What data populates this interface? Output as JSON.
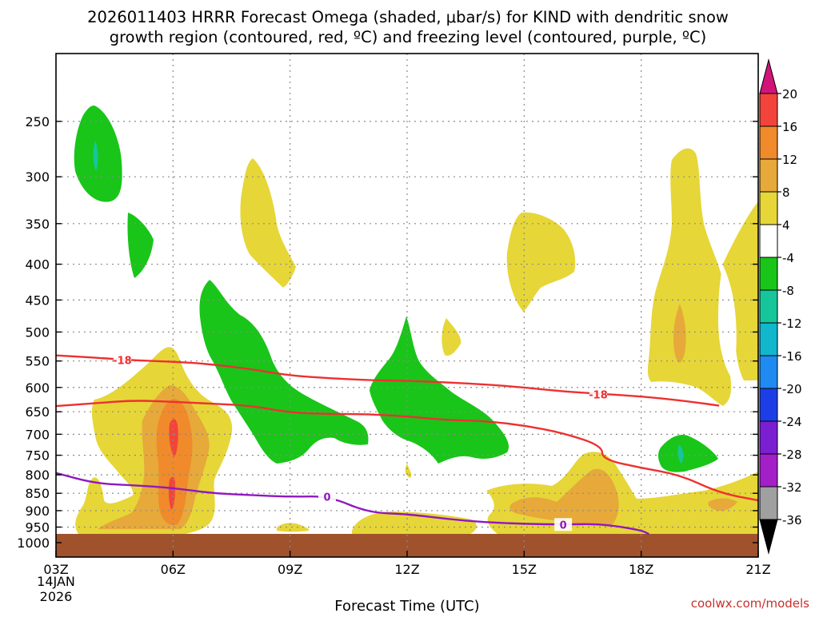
{
  "header": {
    "title_line1": "2026011403 HRRR Forecast Omega (shaded, μbar/s) for KIND with dendritic snow",
    "title_line2": "growth region (contoured, red, ºC) and freezing level (contoured, purple, ºC)"
  },
  "footer": {
    "xlabel": "Forecast Time (UTC)",
    "credit": "coolwx.com/models"
  },
  "chart_data": {
    "type": "heatmap",
    "title": "2026011403 HRRR Forecast Omega (shaded, μbar/s) for KIND with dendritic snow growth region (contoured, red, ºC) and freezing level (contoured, purple, ºC)",
    "xlabel": "Forecast Time (UTC)",
    "ylabel": "",
    "x_ticks": [
      "03Z",
      "06Z",
      "09Z",
      "12Z",
      "15Z",
      "18Z",
      "21Z"
    ],
    "x_tick_hours": [
      3,
      6,
      9,
      12,
      15,
      18,
      21
    ],
    "x_start_date": [
      "14JAN",
      "2026"
    ],
    "x_range": [
      3,
      21
    ],
    "y_ticks": [
      250,
      300,
      350,
      400,
      450,
      500,
      550,
      600,
      650,
      700,
      750,
      800,
      850,
      900,
      950,
      1000
    ],
    "y_range": [
      200,
      1000
    ],
    "y_scale": "log-pressure, inverted",
    "grid": true,
    "colorbar": {
      "ticks": [
        "20",
        "16",
        "12",
        "8",
        "4",
        "-4",
        "-8",
        "-12",
        "-16",
        "-20",
        "-24",
        "-28",
        "-32",
        "-36"
      ],
      "colors": {
        "above_20": "#d21479",
        "16_to_20": "#f2443a",
        "12_to_16": "#f08a2a",
        "8_to_12": "#e6a93a",
        "4_to_8": "#e6d638",
        "-4_to_4": "#ffffff",
        "-8_to_-4": "#19c519",
        "-12_to_-8": "#16c69a",
        "-16_to_-12": "#12b6cd",
        "-20_to_-16": "#1f8aef",
        "-24_to_-20": "#1d3ee6",
        "-28_to_-24": "#7a1fd1",
        "-32_to_-28": "#a31fc8",
        "-36_to_-32": "#a0a0a0",
        "below_-36": "#000000"
      }
    },
    "contours": {
      "dendritic_growth_-18C": {
        "color": "#ee3030",
        "label": "-18",
        "points_hour_hpa": [
          [
            3,
            540
          ],
          [
            4,
            544
          ],
          [
            5,
            549
          ],
          [
            6,
            551
          ],
          [
            7,
            556
          ],
          [
            8,
            565
          ],
          [
            9,
            577
          ],
          [
            10,
            582
          ],
          [
            11,
            586
          ],
          [
            12,
            587
          ],
          [
            13,
            590
          ],
          [
            14,
            594
          ],
          [
            15,
            600
          ],
          [
            16,
            608
          ],
          [
            17,
            613
          ],
          [
            18,
            618
          ],
          [
            19,
            626
          ],
          [
            20,
            637
          ]
        ]
      },
      "dendritic_growth_-12C": {
        "color": "#ee3030",
        "label": "",
        "points_hour_hpa": [
          [
            3,
            638
          ],
          [
            4,
            632
          ],
          [
            5,
            626
          ],
          [
            6,
            629
          ],
          [
            7,
            633
          ],
          [
            8,
            637
          ],
          [
            9,
            652
          ],
          [
            10,
            655
          ],
          [
            11,
            655
          ],
          [
            12,
            660
          ],
          [
            13,
            668
          ],
          [
            14,
            670
          ],
          [
            15,
            680
          ],
          [
            16,
            697
          ],
          [
            17,
            727
          ],
          [
            17,
            760
          ],
          [
            18,
            782
          ],
          [
            19,
            800
          ],
          [
            20,
            849
          ],
          [
            21,
            870
          ]
        ]
      },
      "freezing_level_0C": {
        "color": "#9018c0",
        "label": "0",
        "points_hour_hpa": [
          [
            3,
            795
          ],
          [
            4,
            823
          ],
          [
            5,
            828
          ],
          [
            6,
            835
          ],
          [
            7,
            850
          ],
          [
            8,
            855
          ],
          [
            9,
            860
          ],
          [
            10,
            858
          ],
          [
            11,
            906
          ],
          [
            12,
            910
          ],
          [
            13,
            925
          ],
          [
            14,
            935
          ],
          [
            15,
            940
          ],
          [
            16,
            942
          ],
          [
            17,
            940
          ],
          [
            18,
            960
          ],
          [
            18.2,
            972
          ]
        ]
      }
    },
    "notable_values": [
      {
        "hour": 6,
        "pressure": 700,
        "omega": "16 to 20"
      },
      {
        "hour": 6,
        "pressure": 840,
        "omega": "16 to 20"
      },
      {
        "hour": 4,
        "pressure": 290,
        "omega": "-8 to -12"
      },
      {
        "hour": 19,
        "pressure": 760,
        "omega": "-8 to -12"
      },
      {
        "hour": 19,
        "pressure": 500,
        "omega": "8 to 12"
      }
    ]
  }
}
